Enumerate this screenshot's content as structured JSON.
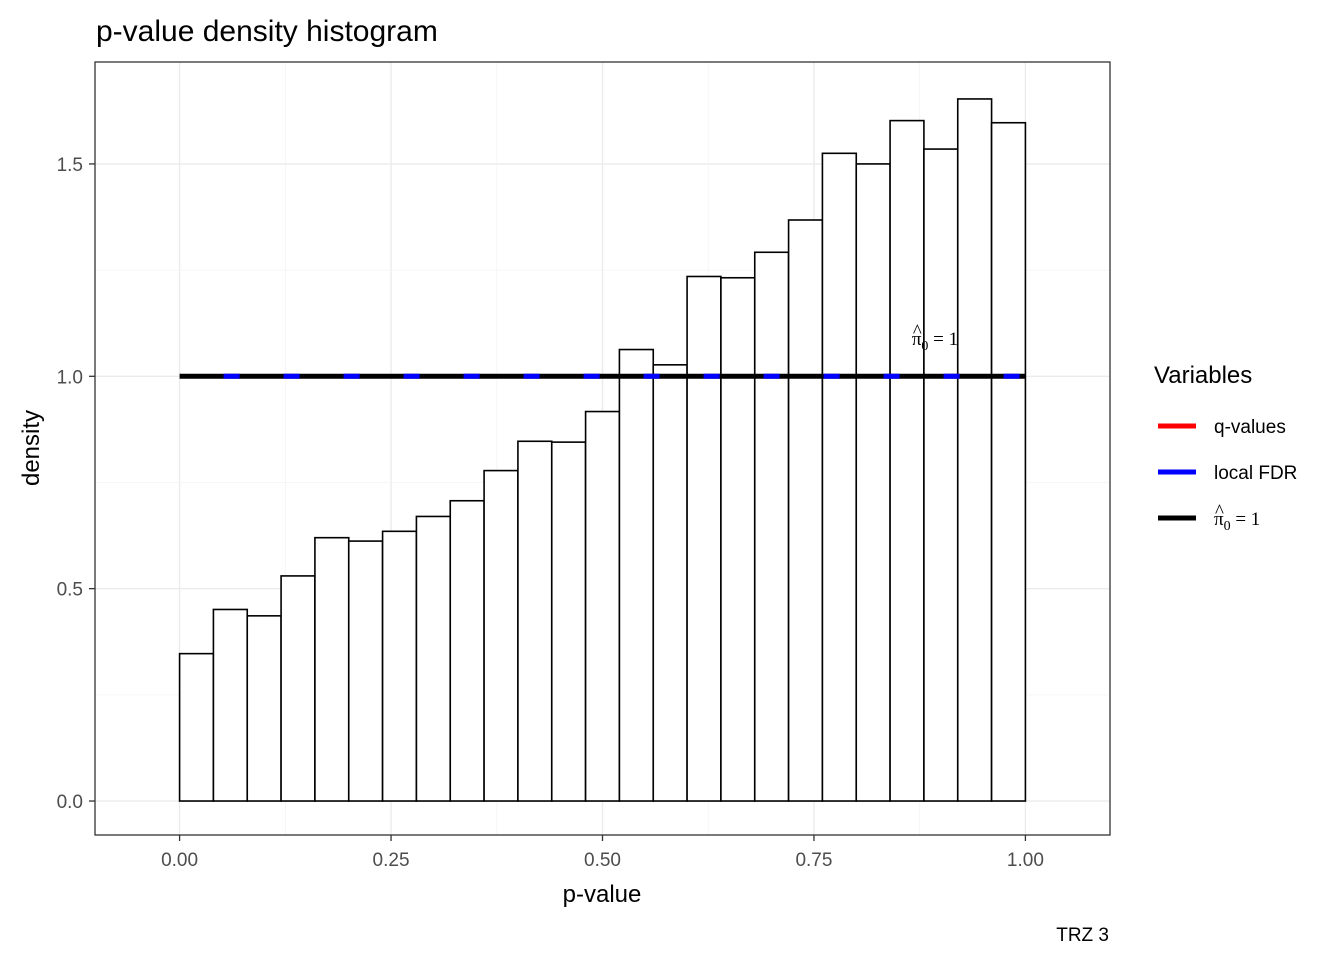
{
  "chart_data": {
    "type": "bar",
    "title": "p-value density histogram",
    "xlabel": "p-value",
    "ylabel": "density",
    "caption": "TRZ 3",
    "xlim": [
      -0.1,
      1.1
    ],
    "ylim": [
      -0.08,
      1.74
    ],
    "x_ticks": [
      0.0,
      0.25,
      0.5,
      0.75,
      1.0
    ],
    "x_tick_labels": [
      "0.00",
      "0.25",
      "0.50",
      "0.75",
      "1.00"
    ],
    "y_ticks": [
      0.0,
      0.5,
      1.0,
      1.5
    ],
    "y_tick_labels": [
      "0.0",
      "0.5",
      "1.0",
      "1.5"
    ],
    "grid": true,
    "bins": {
      "start": 0.0,
      "end": 1.0,
      "count": 25,
      "density": [
        0.347,
        0.451,
        0.436,
        0.53,
        0.62,
        0.612,
        0.635,
        0.67,
        0.707,
        0.778,
        0.847,
        0.845,
        0.917,
        1.063,
        1.027,
        1.235,
        1.232,
        1.292,
        1.368,
        1.525,
        1.5,
        1.602,
        1.535,
        1.653,
        1.597
      ]
    },
    "lines": [
      {
        "name": "local FDR",
        "y": 1.0,
        "color": "#0000ff",
        "style": "dashed"
      },
      {
        "name": "pi0",
        "y": 1.0,
        "color": "#000000",
        "style": "solid"
      }
    ],
    "annotation": {
      "x": 0.9,
      "y": 1.09,
      "symbol": "π",
      "sub": "0",
      "text": " = 1"
    },
    "legend": {
      "title": "Variables",
      "position": "right",
      "items": [
        {
          "label": "q-values",
          "color": "#ff0000"
        },
        {
          "label": "local FDR",
          "color": "#0000ff"
        },
        {
          "label_symbol": "π",
          "label_sub": "0",
          "label_rest": " = 1",
          "color": "#000000"
        }
      ]
    }
  }
}
